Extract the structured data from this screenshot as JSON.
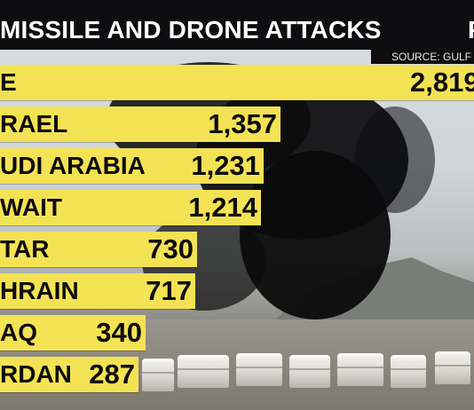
{
  "header": {
    "title": "MISSILE AND DRONE ATTACKS",
    "title_right": "F",
    "source": "SOURCE: GULF"
  },
  "chart_data": {
    "type": "bar",
    "orientation": "horizontal",
    "categories": [
      "E",
      "RAEL",
      "UDI ARABIA",
      "WAIT",
      "TAR",
      "HRAIN",
      "AQ",
      "RDAN"
    ],
    "values": [
      2819,
      1357,
      1231,
      1214,
      730,
      717,
      340,
      287
    ],
    "value_labels": [
      "2,819",
      "1,357",
      "1,231",
      "1,214",
      "730",
      "717",
      "340",
      "287"
    ],
    "bar_color": "#f4e255"
  },
  "colors": {
    "header_bg": "#0e0e10",
    "bar": "#f4e255",
    "text": "#0c0c0c"
  }
}
